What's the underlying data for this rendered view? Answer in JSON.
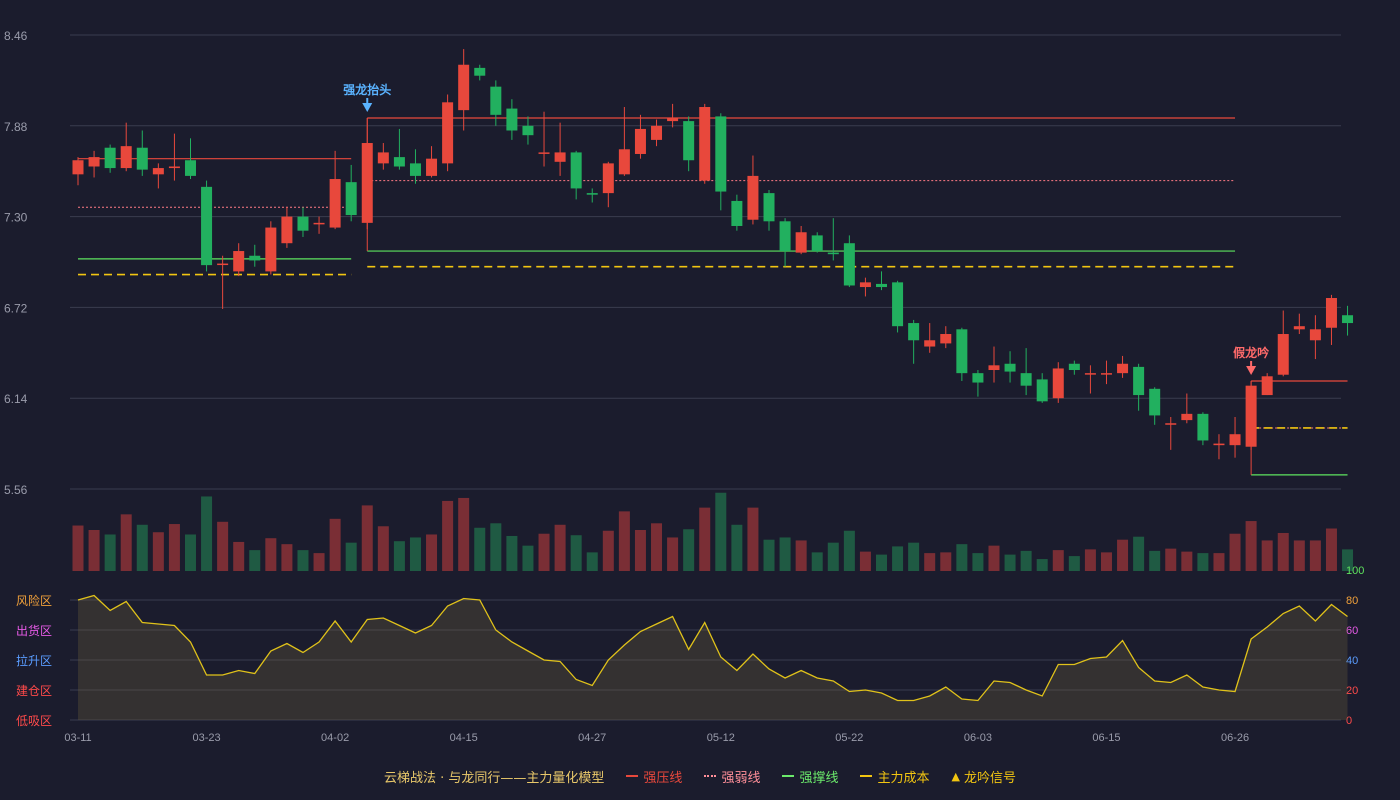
{
  "colors": {
    "bg": "#1b1c2d",
    "up": "#e8483c",
    "down": "#22b05f",
    "pressure": "#e8483c",
    "weak": "#ff7a85",
    "support": "#5ee35e",
    "cost": "#f2c511",
    "osc": "#e0c21a",
    "grid": "#3a3c4e",
    "axis": "#9a9cab"
  },
  "legend": {
    "title": "云梯战法 · 与龙同行——主力量化模型",
    "pressure": "强压线",
    "weak": "强弱线",
    "support": "强撑线",
    "cost": "主力成本",
    "signal": "龙吟信号"
  },
  "chart_data": {
    "type": "candlestick",
    "x_ticks": [
      "03-11",
      "03-23",
      "04-02",
      "04-15",
      "04-27",
      "05-12",
      "05-22",
      "06-03",
      "06-15",
      "06-26"
    ],
    "x_tick_index": [
      0,
      8,
      16,
      24,
      32,
      40,
      48,
      56,
      64,
      72
    ],
    "price_axis": {
      "ticks": [
        5.56,
        6.14,
        6.72,
        7.3,
        7.88,
        8.46
      ],
      "range": [
        5.56,
        8.46
      ]
    },
    "candles": [
      [
        7.57,
        7.66,
        7.5,
        7.68
      ],
      [
        7.62,
        7.68,
        7.55,
        7.72
      ],
      [
        7.74,
        7.61,
        7.58,
        7.76
      ],
      [
        7.61,
        7.75,
        7.59,
        7.9
      ],
      [
        7.74,
        7.6,
        7.56,
        7.85
      ],
      [
        7.57,
        7.61,
        7.48,
        7.64
      ],
      [
        7.61,
        7.62,
        7.53,
        7.83
      ],
      [
        7.66,
        7.56,
        7.54,
        7.8
      ],
      [
        7.49,
        6.99,
        6.95,
        7.53
      ],
      [
        7.0,
        7.0,
        6.71,
        7.05
      ],
      [
        6.95,
        7.08,
        6.92,
        7.13
      ],
      [
        7.05,
        7.02,
        6.98,
        7.12
      ],
      [
        6.95,
        7.23,
        6.93,
        7.27
      ],
      [
        7.13,
        7.3,
        7.1,
        7.36
      ],
      [
        7.3,
        7.21,
        7.17,
        7.36
      ],
      [
        7.26,
        7.26,
        7.19,
        7.3
      ],
      [
        7.23,
        7.54,
        7.22,
        7.72
      ],
      [
        7.52,
        7.31,
        7.27,
        7.63
      ],
      [
        7.26,
        7.77,
        7.22,
        7.93
      ],
      [
        7.64,
        7.71,
        7.6,
        7.77
      ],
      [
        7.68,
        7.62,
        7.6,
        7.86
      ],
      [
        7.64,
        7.56,
        7.51,
        7.73
      ],
      [
        7.56,
        7.67,
        7.55,
        7.75
      ],
      [
        7.64,
        8.03,
        7.59,
        8.08
      ],
      [
        7.98,
        8.27,
        7.85,
        8.37
      ],
      [
        8.25,
        8.2,
        8.17,
        8.27
      ],
      [
        8.13,
        7.95,
        7.88,
        8.17
      ],
      [
        7.99,
        7.85,
        7.79,
        8.05
      ],
      [
        7.88,
        7.82,
        7.76,
        7.94
      ],
      [
        7.71,
        7.71,
        7.62,
        7.97
      ],
      [
        7.65,
        7.71,
        7.56,
        7.9
      ],
      [
        7.71,
        7.48,
        7.41,
        7.72
      ],
      [
        7.45,
        7.44,
        7.39,
        7.48
      ],
      [
        7.45,
        7.64,
        7.36,
        7.65
      ],
      [
        7.57,
        7.73,
        7.56,
        8.0
      ],
      [
        7.7,
        7.86,
        7.67,
        7.95
      ],
      [
        7.79,
        7.88,
        7.75,
        7.92
      ],
      [
        7.91,
        7.93,
        7.87,
        8.02
      ],
      [
        7.91,
        7.66,
        7.59,
        7.94
      ],
      [
        7.53,
        8.0,
        7.51,
        8.02
      ],
      [
        7.94,
        7.46,
        7.34,
        7.96
      ],
      [
        7.4,
        7.24,
        7.21,
        7.44
      ],
      [
        7.28,
        7.56,
        7.25,
        7.69
      ],
      [
        7.45,
        7.27,
        7.21,
        7.47
      ],
      [
        7.27,
        7.08,
        6.98,
        7.29
      ],
      [
        7.07,
        7.2,
        7.06,
        7.24
      ],
      [
        7.18,
        7.08,
        7.07,
        7.2
      ],
      [
        7.07,
        7.06,
        7.02,
        7.29
      ],
      [
        7.13,
        6.86,
        6.85,
        7.18
      ],
      [
        6.85,
        6.88,
        6.79,
        6.91
      ],
      [
        6.87,
        6.85,
        6.83,
        6.95
      ],
      [
        6.88,
        6.6,
        6.56,
        6.89
      ],
      [
        6.62,
        6.51,
        6.36,
        6.64
      ],
      [
        6.47,
        6.51,
        6.43,
        6.62
      ],
      [
        6.49,
        6.55,
        6.46,
        6.6
      ],
      [
        6.58,
        6.3,
        6.25,
        6.59
      ],
      [
        6.3,
        6.24,
        6.15,
        6.32
      ],
      [
        6.32,
        6.35,
        6.24,
        6.47
      ],
      [
        6.36,
        6.31,
        6.24,
        6.44
      ],
      [
        6.3,
        6.22,
        6.16,
        6.46
      ],
      [
        6.26,
        6.12,
        6.11,
        6.3
      ],
      [
        6.14,
        6.33,
        6.11,
        6.37
      ],
      [
        6.36,
        6.32,
        6.29,
        6.38
      ],
      [
        6.3,
        6.3,
        6.17,
        6.35
      ],
      [
        6.3,
        6.3,
        6.23,
        6.38
      ],
      [
        6.3,
        6.36,
        6.27,
        6.41
      ],
      [
        6.34,
        6.16,
        6.06,
        6.36
      ],
      [
        6.2,
        6.03,
        5.97,
        6.21
      ],
      [
        5.98,
        5.98,
        5.81,
        6.02
      ],
      [
        6.0,
        6.04,
        5.98,
        6.17
      ],
      [
        6.04,
        5.87,
        5.84,
        6.05
      ],
      [
        5.84,
        5.85,
        5.75,
        5.91
      ],
      [
        5.84,
        5.91,
        5.76,
        6.02
      ],
      [
        5.83,
        6.22,
        5.81,
        6.25
      ],
      [
        6.16,
        6.28,
        6.16,
        6.3
      ],
      [
        6.29,
        6.55,
        6.28,
        6.7
      ],
      [
        6.58,
        6.6,
        6.55,
        6.68
      ],
      [
        6.51,
        6.58,
        6.39,
        6.67
      ],
      [
        6.59,
        6.78,
        6.48,
        6.8
      ],
      [
        6.67,
        6.62,
        6.54,
        6.73
      ]
    ],
    "volume": [
      0.61,
      0.55,
      0.49,
      0.76,
      0.62,
      0.52,
      0.63,
      0.49,
      1.0,
      0.66,
      0.39,
      0.28,
      0.44,
      0.36,
      0.28,
      0.24,
      0.7,
      0.38,
      0.88,
      0.6,
      0.4,
      0.45,
      0.49,
      0.94,
      0.98,
      0.58,
      0.64,
      0.47,
      0.34,
      0.5,
      0.62,
      0.48,
      0.25,
      0.54,
      0.8,
      0.55,
      0.64,
      0.45,
      0.56,
      0.85,
      1.1,
      0.62,
      0.85,
      0.42,
      0.45,
      0.41,
      0.25,
      0.38,
      0.54,
      0.26,
      0.22,
      0.33,
      0.38,
      0.24,
      0.25,
      0.36,
      0.24,
      0.34,
      0.22,
      0.27,
      0.16,
      0.28,
      0.2,
      0.29,
      0.25,
      0.42,
      0.46,
      0.27,
      0.3,
      0.26,
      0.24,
      0.24,
      0.5,
      0.67,
      0.41,
      0.51,
      0.41,
      0.41,
      0.57,
      0.29
    ],
    "oscillator": {
      "ticks": [
        0,
        20,
        40,
        60,
        80,
        100
      ],
      "range": [
        0,
        100
      ],
      "zones": [
        "风险区",
        "出货区",
        "拉升区",
        "建仓区",
        "低吸区"
      ],
      "values": [
        80,
        83,
        73,
        79,
        65,
        64,
        63,
        52,
        30,
        30,
        33,
        31,
        46,
        51,
        45,
        52,
        66,
        52,
        67,
        68,
        63,
        58,
        63,
        76,
        81,
        80,
        60,
        52,
        46,
        40,
        39,
        27,
        23,
        40,
        50,
        59,
        64,
        69,
        47,
        65,
        42,
        33,
        44,
        34,
        28,
        33,
        28,
        26,
        19,
        20,
        18,
        13,
        13,
        16,
        22,
        14,
        13,
        26,
        25,
        20,
        16,
        37,
        37,
        41,
        42,
        53,
        35,
        26,
        25,
        30,
        22,
        20,
        19,
        54,
        62,
        71,
        76,
        66,
        77,
        69
      ]
    },
    "level_lines": [
      {
        "kind": "pressure",
        "x0": 0,
        "x1": 17,
        "y": 7.67
      },
      {
        "kind": "weak",
        "x0": 0,
        "x1": 17,
        "y": 7.36
      },
      {
        "kind": "support",
        "x0": 0,
        "x1": 17,
        "y": 7.03
      },
      {
        "kind": "cost",
        "x0": 0,
        "x1": 17,
        "y": 6.93
      },
      {
        "kind": "pressure",
        "x0": 18,
        "x1": 72,
        "y": 7.93
      },
      {
        "kind": "weak",
        "x0": 18,
        "x1": 72,
        "y": 7.53
      },
      {
        "kind": "support",
        "x0": 18,
        "x1": 72,
        "y": 7.08
      },
      {
        "kind": "cost",
        "x0": 18,
        "x1": 72,
        "y": 6.98
      },
      {
        "kind": "pressure",
        "x0": 73,
        "x1": 79,
        "y": 6.25
      },
      {
        "kind": "weak",
        "x0": 73,
        "x1": 79,
        "y": 5.95
      },
      {
        "kind": "support",
        "x0": 73,
        "x1": 79,
        "y": 5.65
      },
      {
        "kind": "cost",
        "x0": 73,
        "x1": 79,
        "y": 5.95
      }
    ],
    "signals": [
      {
        "index": 18,
        "label": "强龙抬头",
        "color": "#5ab3ff"
      },
      {
        "index": 73,
        "label": "假龙吟",
        "color": "#ff6a6a"
      }
    ]
  }
}
